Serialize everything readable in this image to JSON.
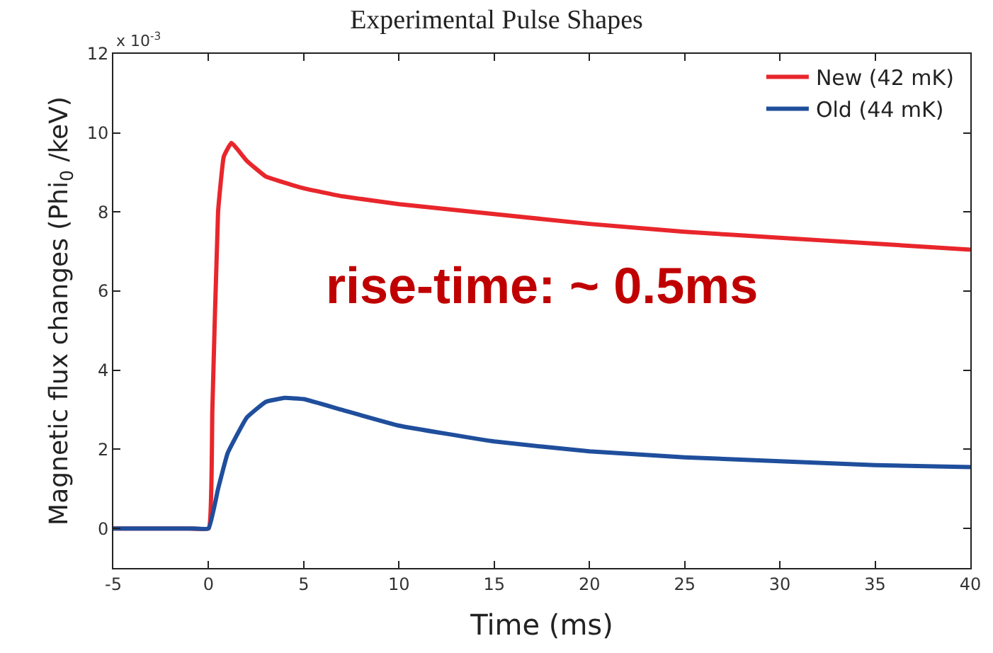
{
  "chart_data": {
    "type": "line",
    "title": "Experimental Pulse Shapes",
    "xlabel": "Time (ms)",
    "ylabel": "Magnetic flux changes (Phi$_{0}$ /keV)",
    "xlim": [
      -5,
      40
    ],
    "xticks": [
      -5,
      0,
      5,
      10,
      15,
      20,
      25,
      30,
      35,
      40
    ],
    "ylim": [
      -1,
      12
    ],
    "yticks": [
      0,
      2,
      4,
      6,
      8,
      10,
      12
    ],
    "legend": "top right",
    "marker": "none",
    "line_style": "solid",
    "annotations": [
      "x 10$^{-3}$",
      "rise-time: ~ 0.5ms"
    ],
    "series": [
      {
        "name": "New (42 mK)",
        "color": "#e8262b",
        "x": [
          -5,
          -1,
          0,
          0.2,
          0.5,
          0.8,
          1.2,
          2,
          3,
          5,
          7,
          10,
          15,
          20,
          25,
          30,
          35,
          40
        ],
        "values": [
          0,
          0,
          0,
          3,
          8,
          9.4,
          9.75,
          9.3,
          8.9,
          8.6,
          8.4,
          8.2,
          7.95,
          7.7,
          7.5,
          7.35,
          7.2,
          7.05
        ]
      },
      {
        "name": "Old (44 mK)",
        "color": "#1f4e9c",
        "x": [
          -5,
          -1,
          0,
          0.5,
          1,
          2,
          3,
          4,
          5,
          7,
          10,
          15,
          20,
          25,
          30,
          35,
          40
        ],
        "values": [
          0,
          0,
          0,
          1,
          1.9,
          2.8,
          3.2,
          3.3,
          3.27,
          3,
          2.6,
          2.2,
          1.95,
          1.8,
          1.7,
          1.6,
          1.55
        ]
      }
    ]
  }
}
